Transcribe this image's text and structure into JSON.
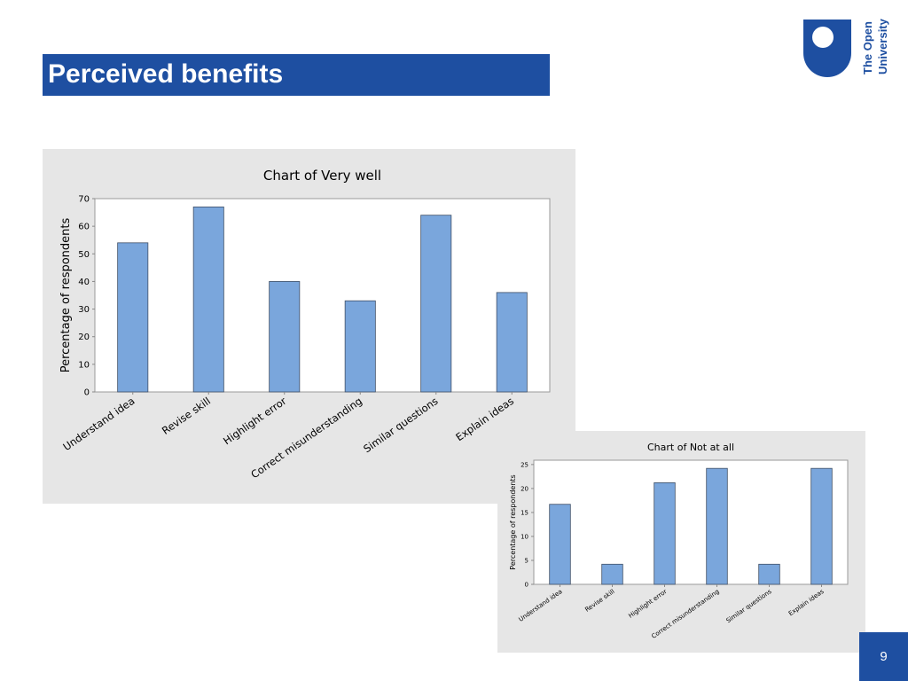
{
  "slide": {
    "title": "Perceived benefits",
    "page_number": "9",
    "brand_color": "#1e4fa1"
  },
  "logo": {
    "text_line1": "The Open",
    "text_line2": "University"
  },
  "chart_data": [
    {
      "type": "bar",
      "title": "Chart of Very well",
      "xlabel": "",
      "ylabel": "Percentage of respondents",
      "categories": [
        "Understand idea",
        "Revise skill",
        "Highlight error",
        "Correct misunderstanding",
        "Similar questions",
        "Explain ideas"
      ],
      "values": [
        54,
        67,
        40,
        33,
        64,
        36
      ],
      "ylim": [
        0,
        70
      ],
      "yticks": [
        0,
        10,
        20,
        30,
        40,
        50,
        60,
        70
      ],
      "bar_color": "#7aa6dc",
      "grid": false,
      "legend": "none"
    },
    {
      "type": "bar",
      "title": "Chart of Not at all",
      "xlabel": "",
      "ylabel": "Percentage of respondents",
      "categories": [
        "Understand idea",
        "Revise skill",
        "Highlight error",
        "Correct misunderstanding",
        "Similar questions",
        "Explain ideas"
      ],
      "values": [
        16.7,
        4.2,
        21.2,
        24.2,
        4.2,
        24.2
      ],
      "ylim": [
        0,
        25.9
      ],
      "yticks": [
        0,
        5,
        10,
        15,
        20,
        25
      ],
      "bar_color": "#7aa6dc",
      "grid": false,
      "legend": "none"
    }
  ]
}
